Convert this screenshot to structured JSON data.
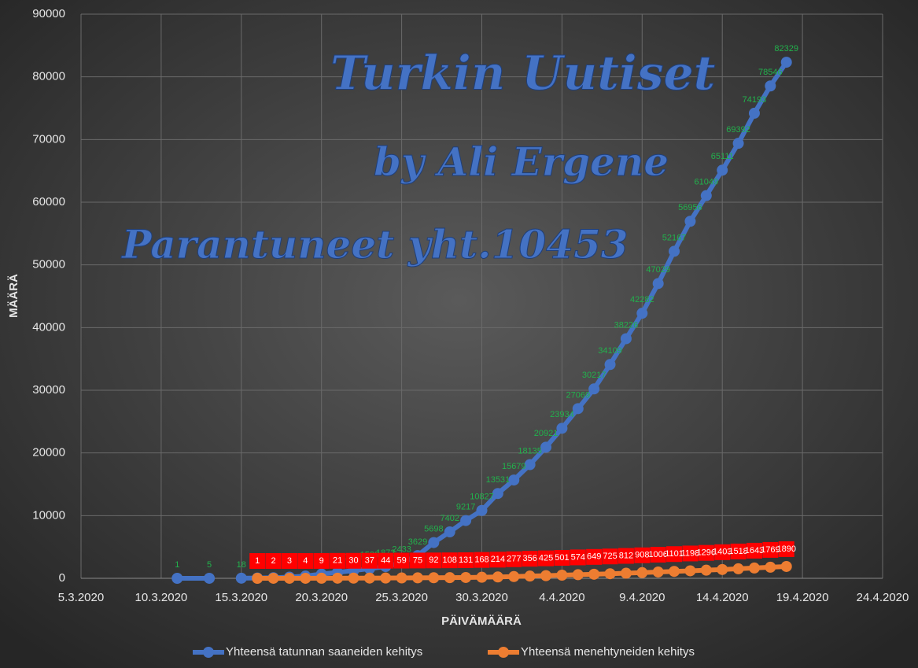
{
  "chart_data": {
    "type": "line",
    "annotations": [
      "Turkin Uutiset",
      "by Ali Ergene",
      "Parantuneet yht.10453"
    ],
    "x_label": "PÄIVÄMÄÄRÄ",
    "y_label": "MÄÄRÄ",
    "x": [
      "11.3.2020",
      "13.3.2020",
      "14.3.2020",
      "15.3.2020",
      "16.3.2020",
      "17.3.2020",
      "18.3.2020",
      "19.3.2020",
      "20.3.2020",
      "21.3.2020",
      "22.3.2020",
      "23.3.2020",
      "24.3.2020",
      "25.3.2020",
      "26.3.2020",
      "27.3.2020",
      "28.3.2020",
      "29.3.2020",
      "30.3.2020",
      "31.3.2020",
      "1.4.2020",
      "2.4.2020",
      "3.4.2020",
      "4.4.2020",
      "5.4.2020",
      "6.4.2020",
      "7.4.2020",
      "8.4.2020",
      "9.4.2020",
      "10.4.2020",
      "11.4.2020",
      "12.4.2020",
      "13.4.2020",
      "14.4.2020",
      "15.4.2020",
      "16.4.2020",
      "17.4.2020",
      "18.4.2020"
    ],
    "series": [
      {
        "name": "Yhteensä tatunnan saaneiden kehitys",
        "color": "#4472c4",
        "label_color": "#22b14c",
        "values": [
          1,
          5,
          null,
          18,
          47,
          98,
          191,
          359,
          670,
          947,
          1236,
          1529,
          1872,
          2433,
          3629,
          5698,
          7402,
          9217,
          10827,
          13531,
          15679,
          18135,
          20921,
          23934,
          27069,
          30217,
          34109,
          38226,
          42282,
          47029,
          52167,
          56956,
          61049,
          65111,
          69392,
          74193,
          78546,
          82329
        ]
      },
      {
        "name": "Yhteensä menehtyneiden kehitys",
        "color": "#ed7d31",
        "label_color": "#ff0000",
        "values": [
          null,
          null,
          null,
          null,
          1,
          2,
          3,
          4,
          9,
          21,
          30,
          37,
          44,
          59,
          75,
          92,
          108,
          131,
          168,
          214,
          277,
          356,
          425,
          501,
          574,
          649,
          725,
          812,
          908,
          1006,
          1101,
          1198,
          1296,
          1403,
          1518,
          1643,
          1769,
          1890
        ]
      }
    ],
    "xlim": [
      "5.3.2020",
      "24.4.2020"
    ],
    "xticks": [
      "5.3.2020",
      "10.3.2020",
      "15.3.2020",
      "20.3.2020",
      "25.3.2020",
      "30.3.2020",
      "4.4.2020",
      "9.4.2020",
      "14.4.2020",
      "19.4.2020",
      "24.4.2020"
    ],
    "ylim": [
      0,
      90000
    ],
    "yticks": [
      0,
      10000,
      20000,
      30000,
      40000,
      50000,
      60000,
      70000,
      80000,
      90000
    ],
    "grid": true,
    "legend": "bottom"
  }
}
